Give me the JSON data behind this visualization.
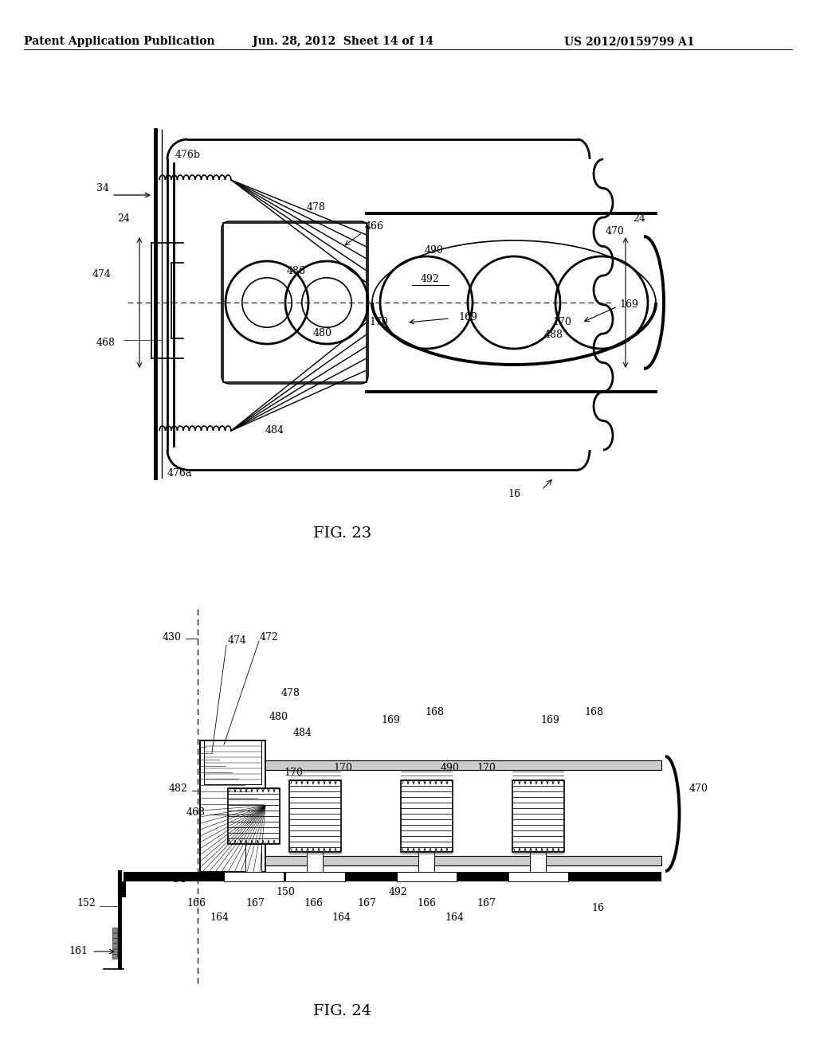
{
  "background_color": "#ffffff",
  "header_left": "Patent Application Publication",
  "header_center": "Jun. 28, 2012  Sheet 14 of 14",
  "header_right": "US 2012/0159799 A1",
  "fig23_label": "FIG. 23",
  "fig24_label": "FIG. 24",
  "header_fontsize": 10,
  "label_fontsize": 9,
  "fig_label_fontsize": 14
}
